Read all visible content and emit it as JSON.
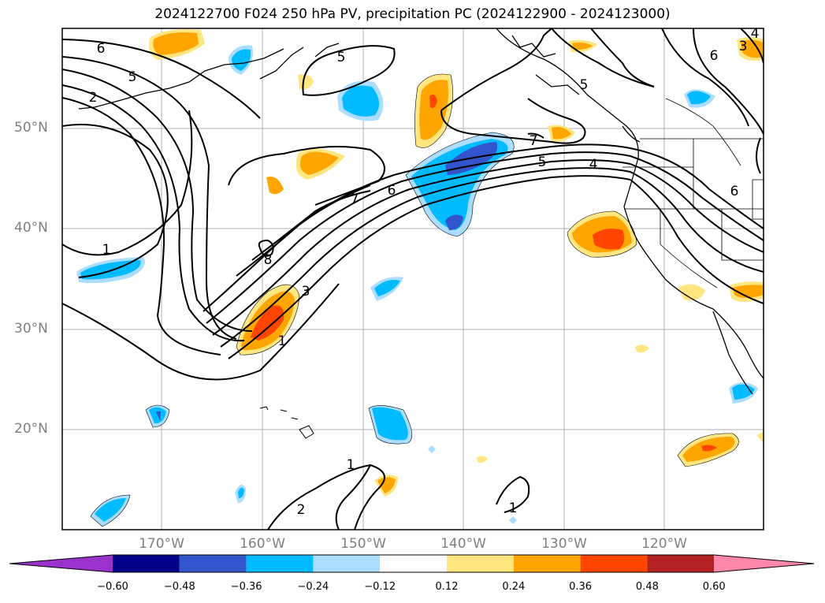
{
  "title": "2024122700 F024 250 hPa PV, precipitation PC (2024122900 - 2024123000)",
  "lat_labels": [
    "50°N",
    "40°N",
    "30°N",
    "20°N"
  ],
  "lon_labels": [
    "170°W",
    "160°W",
    "150°W",
    "140°W",
    "130°W",
    "120°W"
  ],
  "colorbar": {
    "ticks": [
      "−0.60",
      "−0.48",
      "−0.36",
      "−0.24",
      "−0.12",
      "0.12",
      "0.24",
      "0.36",
      "0.48",
      "0.60"
    ],
    "colors": [
      "#9933cc",
      "#000088",
      "#3355cc",
      "#00bbff",
      "#aaddff",
      "#ffffff",
      "#ffe680",
      "#ffa500",
      "#ff4500",
      "#b22222",
      "#ff88aa",
      "#ff88aa"
    ]
  },
  "contour_labels": [
    "6",
    "5",
    "2",
    "5",
    "1",
    "8",
    "3",
    "1",
    "7",
    "6",
    "5",
    "4",
    "7",
    "6",
    "6",
    "5",
    "1",
    "2",
    "1",
    "4",
    "3"
  ],
  "colors": {
    "positive_strong": "#ff4500",
    "positive": "#ffa500",
    "positive_weak": "#ffe680",
    "negative_weak": "#aaddff",
    "negative": "#00bbff",
    "negative_strong": "#3355cc"
  }
}
